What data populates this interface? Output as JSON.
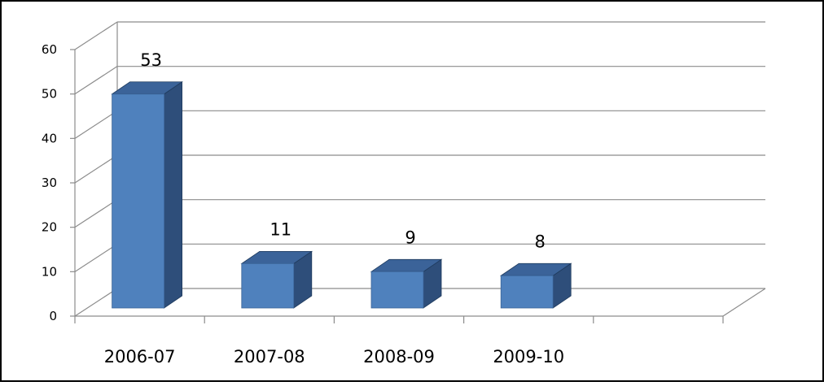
{
  "chart_data": {
    "type": "bar",
    "categories": [
      "2006-07",
      "2007-08",
      "2008-09",
      "2009-10"
    ],
    "values": [
      53,
      11,
      9,
      8
    ],
    "title": "",
    "xlabel": "",
    "ylabel": "",
    "ylim": [
      0,
      60
    ],
    "yticks": [
      "0",
      "10",
      "20",
      "30",
      "40",
      "50",
      "60"
    ],
    "grid": true,
    "legend": "none",
    "three_d": true,
    "colors": {
      "bar_front": "#4F81BD",
      "bar_side": "#2E4E7A",
      "bar_top": "#3B6399",
      "grid": "#8C8C8C",
      "axis": "#8C8C8C",
      "border": "#000000"
    }
  }
}
